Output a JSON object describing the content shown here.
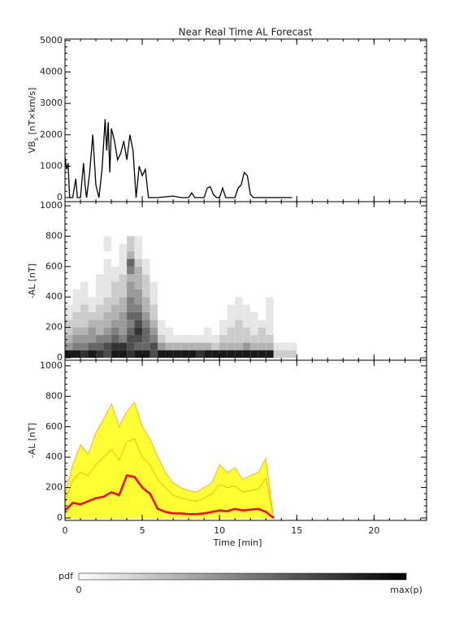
{
  "chart_data": [
    {
      "type": "line",
      "title": "Near Real Time AL Forecast",
      "ylabel": [
        "VB",
        "s",
        " [nT×km/s]"
      ],
      "x": [
        0,
        0.1,
        0.2,
        0.3,
        0.5,
        0.7,
        0.8,
        1.0,
        1.2,
        1.3,
        1.4,
        1.6,
        1.8,
        2.0,
        2.2,
        2.4,
        2.6,
        2.7,
        2.8,
        2.9,
        3.0,
        3.2,
        3.4,
        3.6,
        3.8,
        4.0,
        4.2,
        4.4,
        4.6,
        4.8,
        5.0,
        5.2,
        5.4,
        6.0,
        7.0,
        7.5,
        8.0,
        8.2,
        8.4,
        9.0,
        9.2,
        9.4,
        9.6,
        9.8,
        10.0,
        10.2,
        10.4,
        11.0,
        11.2,
        11.4,
        11.6,
        11.8,
        12.0,
        12.2,
        13.0,
        14.7
      ],
      "values": [
        1300,
        900,
        1100,
        0,
        0,
        600,
        0,
        0,
        1100,
        400,
        0,
        800,
        2000,
        400,
        0,
        900,
        2500,
        1500,
        2400,
        800,
        2200,
        1800,
        1200,
        1400,
        1800,
        1200,
        2000,
        1500,
        0,
        1000,
        700,
        900,
        0,
        0,
        50,
        0,
        0,
        150,
        0,
        0,
        300,
        350,
        100,
        0,
        0,
        300,
        0,
        0,
        300,
        400,
        800,
        700,
        100,
        0,
        0,
        0
      ],
      "color": "#000000",
      "xlim": [
        0,
        23.4
      ],
      "xticks": [
        0,
        5,
        10,
        15,
        20
      ],
      "ylim": [
        -130,
        5050
      ],
      "yticks": [
        0,
        1000,
        2000,
        3000,
        4000,
        5000
      ]
    },
    {
      "type": "heatmap",
      "ylabel": "-AL [nT]",
      "xbins": [
        0,
        0.5,
        1,
        1.5,
        2,
        2.5,
        3,
        3.5,
        4,
        4.5,
        5,
        5.5,
        6,
        6.5,
        7,
        7.5,
        8,
        8.5,
        9,
        9.5,
        10,
        10.5,
        11,
        11.5,
        12,
        12.5,
        13,
        13.5,
        14,
        14.5,
        15
      ],
      "ybins": [
        0,
        50,
        100,
        150,
        200,
        250,
        300,
        350,
        400,
        450,
        500,
        550,
        600,
        650,
        700,
        750,
        800
      ],
      "values": [
        [
          0.9,
          0.9,
          0.8,
          0.9,
          0.8,
          0.7,
          0.9,
          0.9,
          0.8,
          0.9,
          0.9,
          0.7,
          0.9,
          0.9,
          0.9,
          0.9,
          0.9,
          0.8,
          0.9,
          0.9,
          0.9,
          0.9,
          0.9,
          0.9,
          0.9,
          0.9,
          0.9,
          0.2,
          0.2,
          0.2
        ],
        [
          0.4,
          0.5,
          0.5,
          0.6,
          0.6,
          0.7,
          0.8,
          0.8,
          0.7,
          0.6,
          0.6,
          0.7,
          0.4,
          0.3,
          0.3,
          0.3,
          0.3,
          0.3,
          0.3,
          0.2,
          0.3,
          0.3,
          0.3,
          0.4,
          0.3,
          0.3,
          0.3,
          0.1,
          0.1,
          0.1
        ],
        [
          0.3,
          0.4,
          0.4,
          0.4,
          0.5,
          0.5,
          0.6,
          0.5,
          0.7,
          0.7,
          0.6,
          0.5,
          0.2,
          0.1,
          0.1,
          0.1,
          0.1,
          0.1,
          0.1,
          0.1,
          0.2,
          0.2,
          0.2,
          0.2,
          0.2,
          0.2,
          0.2,
          0,
          0,
          0
        ],
        [
          0.2,
          0.3,
          0.3,
          0.4,
          0.3,
          0.4,
          0.5,
          0.4,
          0.6,
          0.8,
          0.6,
          0.4,
          0.1,
          0.1,
          0,
          0,
          0,
          0,
          0.1,
          0,
          0.1,
          0.2,
          0.2,
          0.2,
          0.1,
          0.2,
          0.1,
          0,
          0,
          0
        ],
        [
          0.2,
          0.2,
          0.2,
          0.3,
          0.3,
          0.3,
          0.4,
          0.4,
          0.5,
          0.7,
          0.5,
          0.3,
          0.1,
          0,
          0,
          0,
          0,
          0,
          0,
          0,
          0.1,
          0.1,
          0.2,
          0.1,
          0.1,
          0.1,
          0.1,
          0,
          0,
          0
        ],
        [
          0.1,
          0.2,
          0.2,
          0.2,
          0.2,
          0.3,
          0.3,
          0.4,
          0.6,
          0.6,
          0.4,
          0.2,
          0,
          0,
          0,
          0,
          0,
          0,
          0,
          0,
          0,
          0.1,
          0.1,
          0.1,
          0.1,
          0,
          0.1,
          0,
          0,
          0
        ],
        [
          0.1,
          0.1,
          0.2,
          0.1,
          0.2,
          0.2,
          0.3,
          0.3,
          0.5,
          0.5,
          0.3,
          0.2,
          0,
          0,
          0,
          0,
          0,
          0,
          0,
          0,
          0,
          0.1,
          0.1,
          0.1,
          0,
          0,
          0.1,
          0,
          0,
          0
        ],
        [
          0,
          0.1,
          0.1,
          0.1,
          0.1,
          0.2,
          0.2,
          0.3,
          0.5,
          0.4,
          0.3,
          0.1,
          0,
          0,
          0,
          0,
          0,
          0,
          0,
          0,
          0,
          0,
          0.1,
          0,
          0,
          0,
          0.1,
          0,
          0,
          0
        ],
        [
          0,
          0.1,
          0.1,
          0,
          0.1,
          0.1,
          0.2,
          0.2,
          0.4,
          0.4,
          0.2,
          0.1,
          0,
          0,
          0,
          0,
          0,
          0,
          0,
          0,
          0,
          0,
          0,
          0,
          0,
          0,
          0,
          0,
          0,
          0
        ],
        [
          0,
          0,
          0.1,
          0,
          0.1,
          0.1,
          0.2,
          0.2,
          0.4,
          0.3,
          0.2,
          0.1,
          0,
          0,
          0,
          0,
          0,
          0,
          0,
          0,
          0,
          0,
          0,
          0,
          0,
          0,
          0,
          0,
          0,
          0
        ],
        [
          0,
          0,
          0,
          0,
          0.1,
          0.1,
          0.1,
          0.2,
          0.3,
          0.3,
          0.2,
          0,
          0,
          0,
          0,
          0,
          0,
          0,
          0,
          0,
          0,
          0,
          0,
          0,
          0,
          0,
          0,
          0,
          0,
          0
        ],
        [
          0,
          0,
          0,
          0,
          0,
          0.1,
          0.1,
          0.1,
          0.5,
          0.3,
          0.1,
          0,
          0,
          0,
          0,
          0,
          0,
          0,
          0,
          0,
          0,
          0,
          0,
          0,
          0,
          0,
          0,
          0,
          0,
          0
        ],
        [
          0,
          0,
          0,
          0,
          0,
          0.1,
          0,
          0.1,
          0.6,
          0.2,
          0.1,
          0,
          0,
          0,
          0,
          0,
          0,
          0,
          0,
          0,
          0,
          0,
          0,
          0,
          0,
          0,
          0,
          0,
          0,
          0
        ],
        [
          0,
          0,
          0,
          0,
          0,
          0,
          0,
          0.1,
          0.3,
          0.1,
          0,
          0,
          0,
          0,
          0,
          0,
          0,
          0,
          0,
          0,
          0,
          0,
          0,
          0,
          0,
          0,
          0,
          0,
          0,
          0
        ],
        [
          0,
          0,
          0,
          0,
          0,
          0.1,
          0,
          0.1,
          0.2,
          0.1,
          0,
          0,
          0,
          0,
          0,
          0,
          0,
          0,
          0,
          0,
          0,
          0,
          0,
          0,
          0,
          0,
          0,
          0,
          0,
          0
        ],
        [
          0,
          0,
          0,
          0,
          0,
          0.1,
          0,
          0,
          0.2,
          0.1,
          0,
          0,
          0,
          0,
          0,
          0,
          0,
          0,
          0,
          0,
          0,
          0,
          0,
          0,
          0,
          0,
          0,
          0,
          0,
          0
        ]
      ],
      "xlim": [
        0,
        23.4
      ],
      "xticks": [
        0,
        5,
        10,
        15,
        20
      ],
      "ylim": [
        -16,
        1027
      ],
      "yticks": [
        0,
        200,
        400,
        600,
        800,
        1000
      ]
    },
    {
      "type": "line",
      "ylabel": "-AL [nT]",
      "xlabel": "Time [min]",
      "x": [
        0,
        0.5,
        1,
        1.5,
        2,
        2.5,
        3,
        3.5,
        4,
        4.5,
        5,
        5.5,
        6,
        6.5,
        7,
        7.5,
        8,
        8.5,
        9,
        9.5,
        10,
        10.5,
        11,
        11.5,
        12,
        12.5,
        13,
        13.5
      ],
      "series": [
        {
          "color": "#ffa500",
          "fill": "#ffff33",
          "values": [
            150,
            350,
            480,
            420,
            560,
            650,
            750,
            600,
            700,
            760,
            600,
            520,
            400,
            300,
            230,
            200,
            180,
            170,
            200,
            230,
            350,
            300,
            330,
            250,
            280,
            300,
            390,
            0
          ]
        },
        {
          "color": "#ffa500",
          "values": [
            100,
            250,
            300,
            280,
            350,
            400,
            450,
            380,
            500,
            520,
            400,
            350,
            250,
            200,
            150,
            130,
            120,
            110,
            130,
            160,
            220,
            200,
            210,
            170,
            180,
            190,
            260,
            0
          ]
        },
        {
          "color": "#ff0000",
          "values": [
            50,
            100,
            90,
            110,
            130,
            140,
            170,
            150,
            280,
            270,
            200,
            160,
            60,
            40,
            30,
            30,
            25,
            25,
            30,
            40,
            50,
            45,
            60,
            50,
            55,
            60,
            40,
            0
          ]
        }
      ],
      "xlim": [
        0,
        23.4
      ],
      "xticks": [
        0,
        5,
        10,
        15,
        20
      ],
      "ylim": [
        -16,
        1037
      ],
      "yticks": [
        0,
        200,
        400,
        600,
        800,
        1000
      ]
    }
  ],
  "colorbar": {
    "label": "pdf",
    "min_label": "0",
    "max_label": "max(p)"
  }
}
